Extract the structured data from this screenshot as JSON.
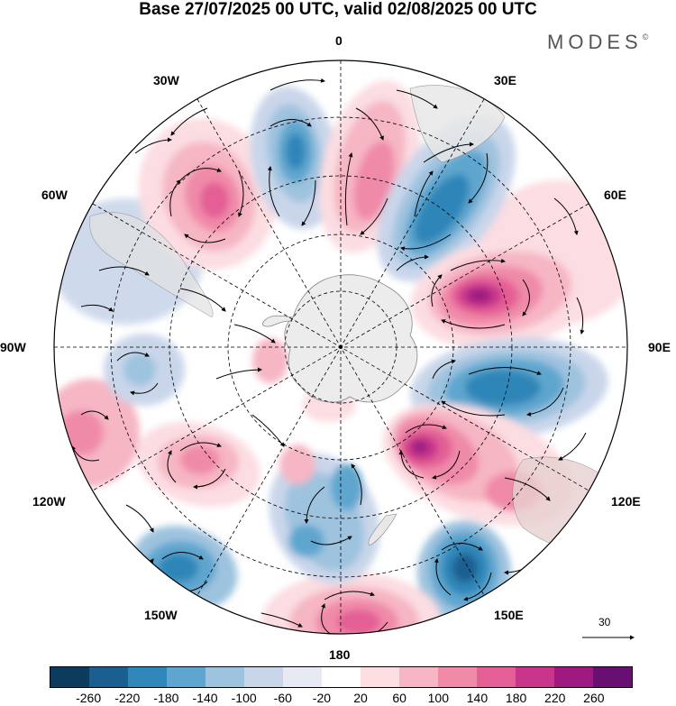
{
  "title": "Base 27/07/2025 00 UTC, valid 02/08/2025 00 UTC",
  "logo": {
    "text": "MODES",
    "mark": "©"
  },
  "longitude_labels": {
    "top": "0",
    "top_right": "30E",
    "right_upper": "60E",
    "right": "90E",
    "right_lower": "120E",
    "bottom_right": "150E",
    "bottom": "180",
    "bottom_left": "150W",
    "left_lower": "120W",
    "left": "90W",
    "left_upper": "60W",
    "top_left": "30W"
  },
  "wind_reference": {
    "value": "30",
    "icon": "arrow-right-icon"
  },
  "colorbar": {
    "colors": [
      "#0d3b5e",
      "#1a5f8f",
      "#2f86b8",
      "#5ea6cf",
      "#9ec3df",
      "#c9d6ea",
      "#e7e9f3",
      "#ffffff",
      "#fbdde2",
      "#f6b6c4",
      "#f08aa9",
      "#e35f95",
      "#c8358a",
      "#9e1a80",
      "#6a0f72"
    ],
    "labels": [
      "-260",
      "-220",
      "-180",
      "-140",
      "-100",
      "-60",
      "-20",
      "20",
      "60",
      "100",
      "140",
      "180",
      "220",
      "260"
    ]
  }
}
